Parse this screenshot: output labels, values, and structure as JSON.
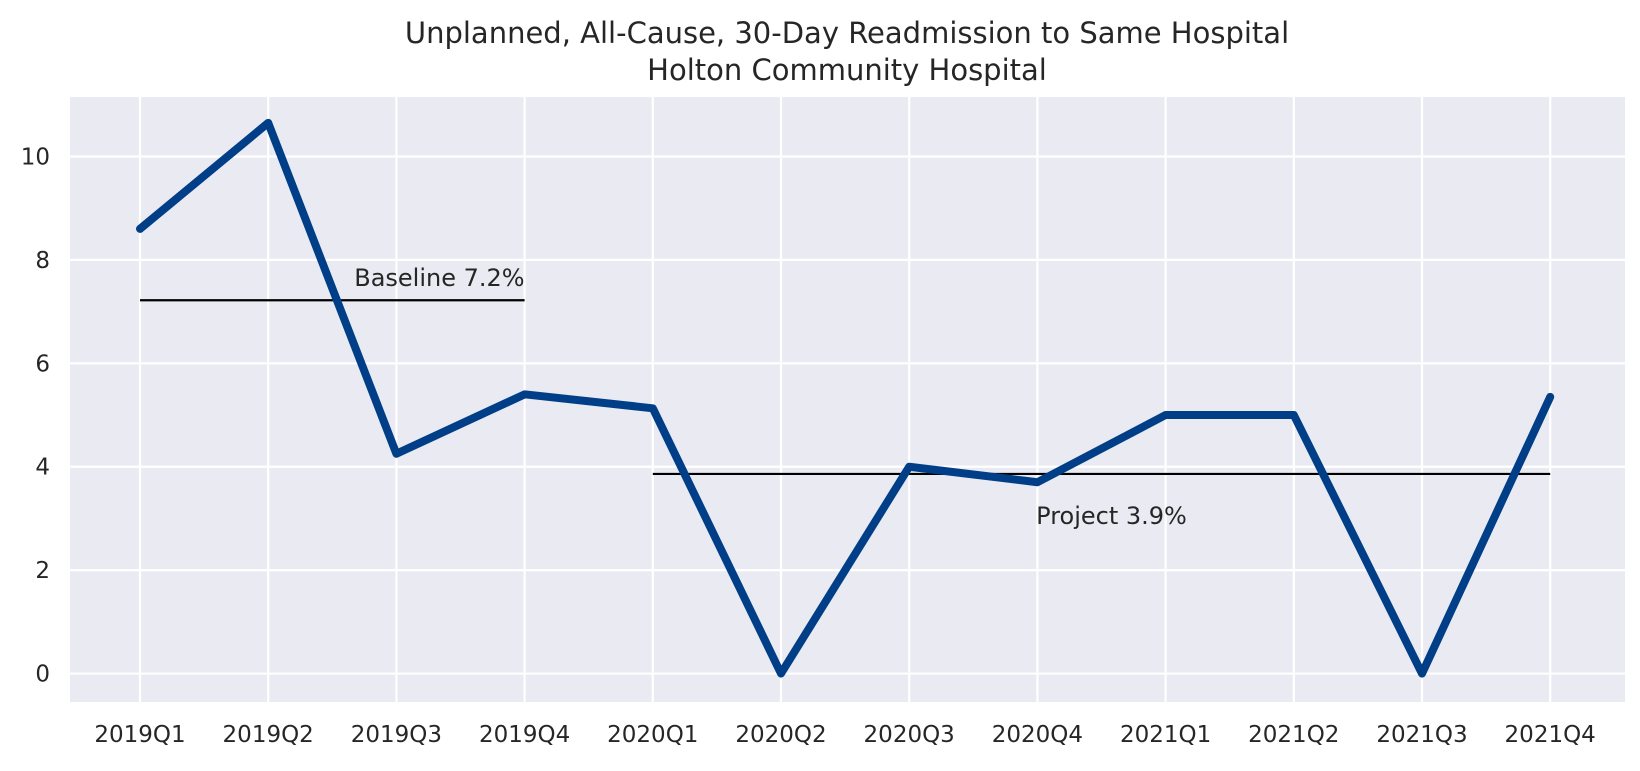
{
  "chart_data": {
    "type": "line",
    "title": "Unplanned, All-Cause, 30-Day Readmission to Same Hospital",
    "subtitle": "Holton Community Hospital",
    "xlabel": "",
    "ylabel": "",
    "categories": [
      "2019Q1",
      "2019Q2",
      "2019Q3",
      "2019Q4",
      "2020Q1",
      "2020Q2",
      "2020Q3",
      "2020Q4",
      "2021Q1",
      "2021Q2",
      "2021Q3",
      "2021Q4"
    ],
    "series": [
      {
        "values": [
          8.6,
          10.65,
          4.25,
          5.4,
          5.13,
          0,
          4.0,
          3.7,
          5.0,
          5.0,
          0,
          5.35
        ],
        "color": "#003f87"
      }
    ],
    "ylim": [
      -0.55,
      11.15
    ],
    "yticks": [
      0,
      2,
      4,
      6,
      8,
      10
    ],
    "grid": true,
    "background": "#eaeaf2",
    "reference_lines": [
      {
        "label": "Baseline 7.2%",
        "value": 7.22,
        "from": "2019Q1",
        "to": "2019Q4"
      },
      {
        "label": "Project 3.9%",
        "value": 3.86,
        "from": "2020Q1",
        "to": "2021Q4"
      }
    ]
  }
}
